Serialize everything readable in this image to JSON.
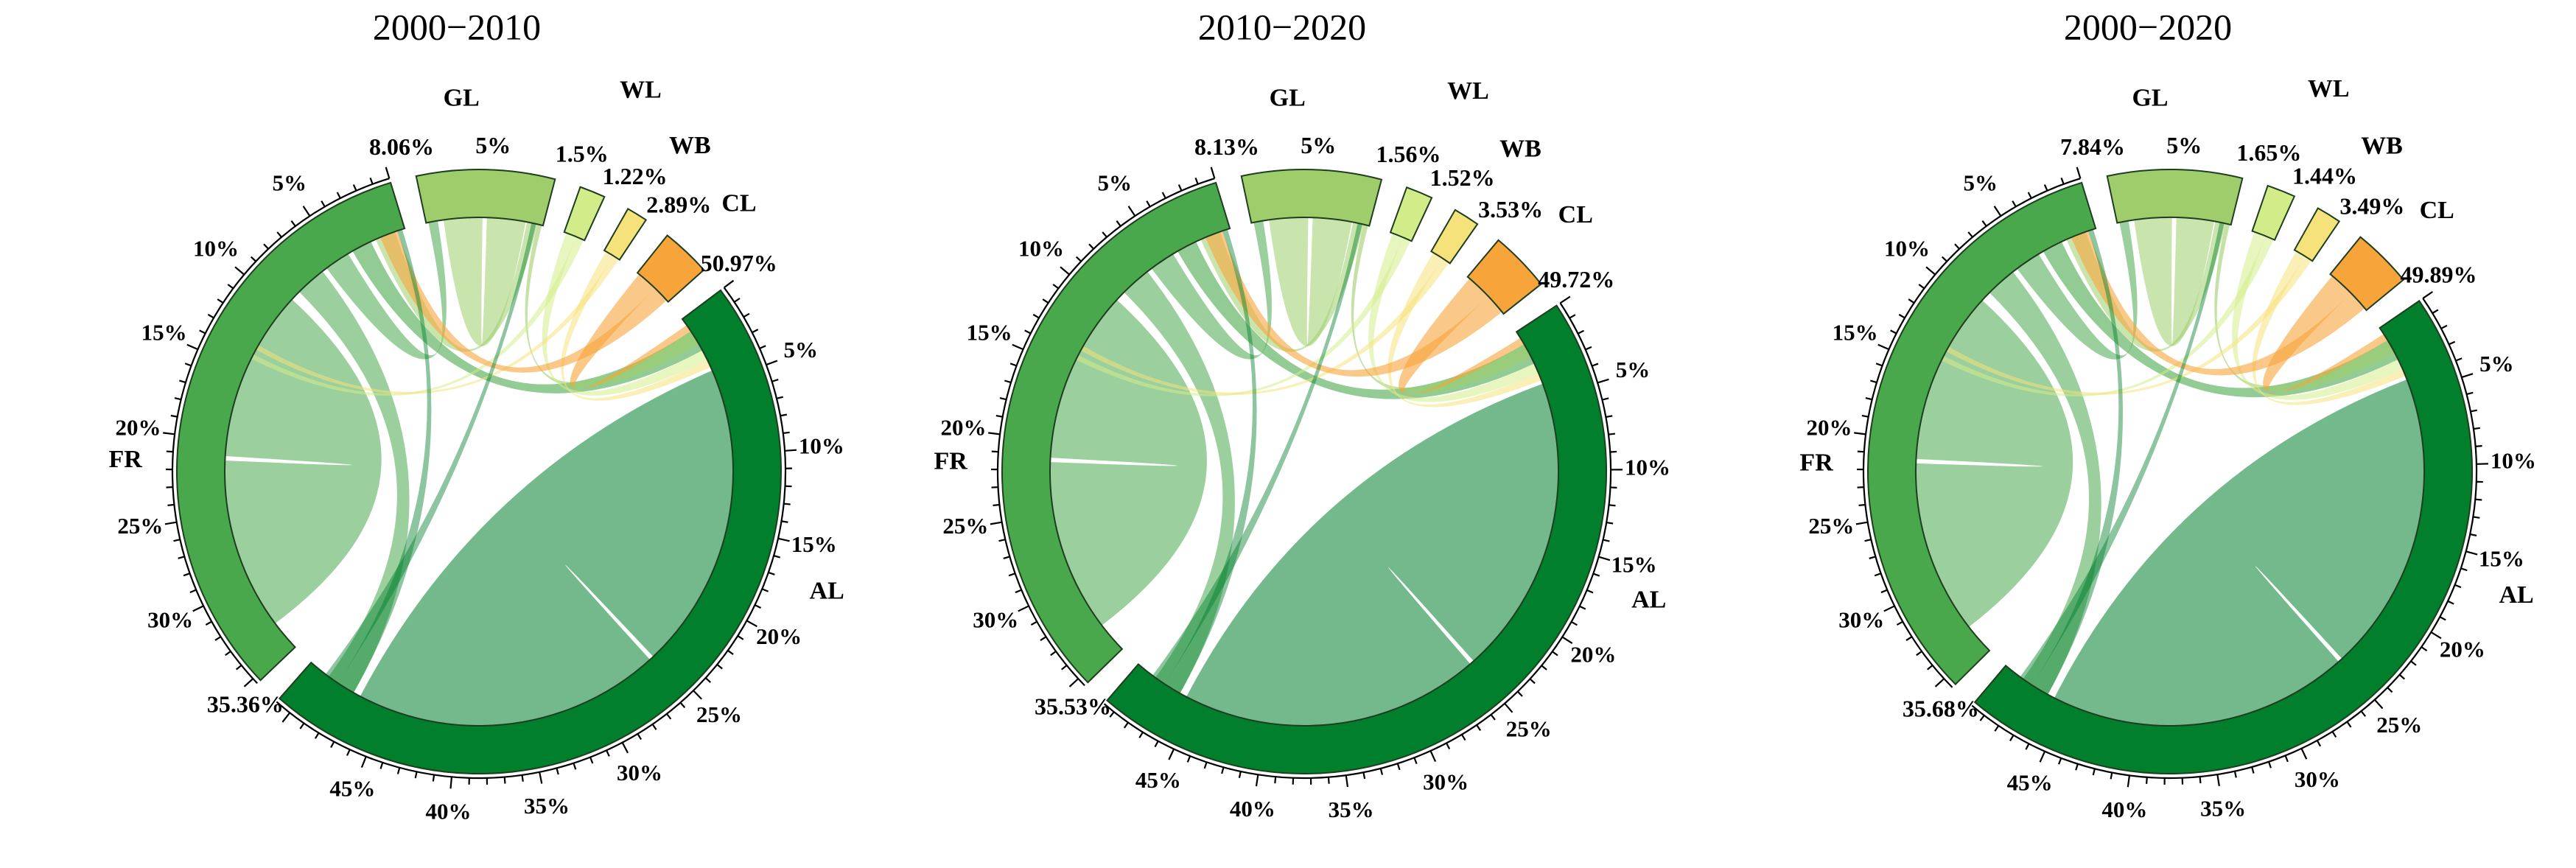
{
  "chart_data": [
    {
      "type": "chord",
      "title": "2000−2010",
      "categories": [
        {
          "name": "GL",
          "share": 8.06,
          "share_label": "8.06%",
          "color": "#9fcd6b"
        },
        {
          "name": "WL",
          "share": 1.5,
          "share_label": "1.5%",
          "color": "#d3ec8a"
        },
        {
          "name": "WB",
          "share": 1.22,
          "share_label": "1.22%",
          "color": "#f6e27a"
        },
        {
          "name": "CL",
          "share": 2.89,
          "share_label": "2.89%",
          "color": "#f7a53a"
        },
        {
          "name": "AL",
          "share": 50.97,
          "share_label": "50.97%",
          "color": "#017f2c"
        },
        {
          "name": "FR",
          "share": 35.36,
          "share_label": "35.36%",
          "color": "#49a84c"
        }
      ],
      "gl_inner_tick": "5%",
      "al_ticks": [
        "5%",
        "10%",
        "15%",
        "20%",
        "25%",
        "30%",
        "35%",
        "40%",
        "45%"
      ],
      "fr_ticks": [
        "5%",
        "10%",
        "15%",
        "20%",
        "25%",
        "30%"
      ]
    },
    {
      "type": "chord",
      "title": "2010−2020",
      "categories": [
        {
          "name": "GL",
          "share": 8.13,
          "share_label": "8.13%",
          "color": "#9fcd6b"
        },
        {
          "name": "WL",
          "share": 1.56,
          "share_label": "1.56%",
          "color": "#d3ec8a"
        },
        {
          "name": "WB",
          "share": 1.52,
          "share_label": "1.52%",
          "color": "#f6e27a"
        },
        {
          "name": "CL",
          "share": 3.53,
          "share_label": "3.53%",
          "color": "#f7a53a"
        },
        {
          "name": "AL",
          "share": 49.72,
          "share_label": "49.72%",
          "color": "#017f2c"
        },
        {
          "name": "FR",
          "share": 35.53,
          "share_label": "35.53%",
          "color": "#49a84c"
        }
      ],
      "gl_inner_tick": "5%",
      "al_ticks": [
        "5%",
        "10%",
        "15%",
        "20%",
        "25%",
        "30%",
        "35%",
        "40%",
        "45%"
      ],
      "fr_ticks": [
        "5%",
        "10%",
        "15%",
        "20%",
        "25%",
        "30%"
      ]
    },
    {
      "type": "chord",
      "title": "2000−2020",
      "categories": [
        {
          "name": "GL",
          "share": 7.84,
          "share_label": "7.84%",
          "color": "#9fcd6b"
        },
        {
          "name": "WL",
          "share": 1.65,
          "share_label": "1.65%",
          "color": "#d3ec8a"
        },
        {
          "name": "WB",
          "share": 1.44,
          "share_label": "1.44%",
          "color": "#f6e27a"
        },
        {
          "name": "CL",
          "share": 3.49,
          "share_label": "3.49%",
          "color": "#f7a53a"
        },
        {
          "name": "AL",
          "share": 49.89,
          "share_label": "49.89%",
          "color": "#017f2c"
        },
        {
          "name": "FR",
          "share": 35.68,
          "share_label": "35.68%",
          "color": "#49a84c"
        }
      ],
      "gl_inner_tick": "5%",
      "al_ticks": [
        "5%",
        "10%",
        "15%",
        "20%",
        "25%",
        "30%",
        "35%",
        "40%",
        "45%"
      ],
      "fr_ticks": [
        "5%",
        "10%",
        "15%",
        "20%",
        "25%",
        "30%"
      ]
    }
  ]
}
